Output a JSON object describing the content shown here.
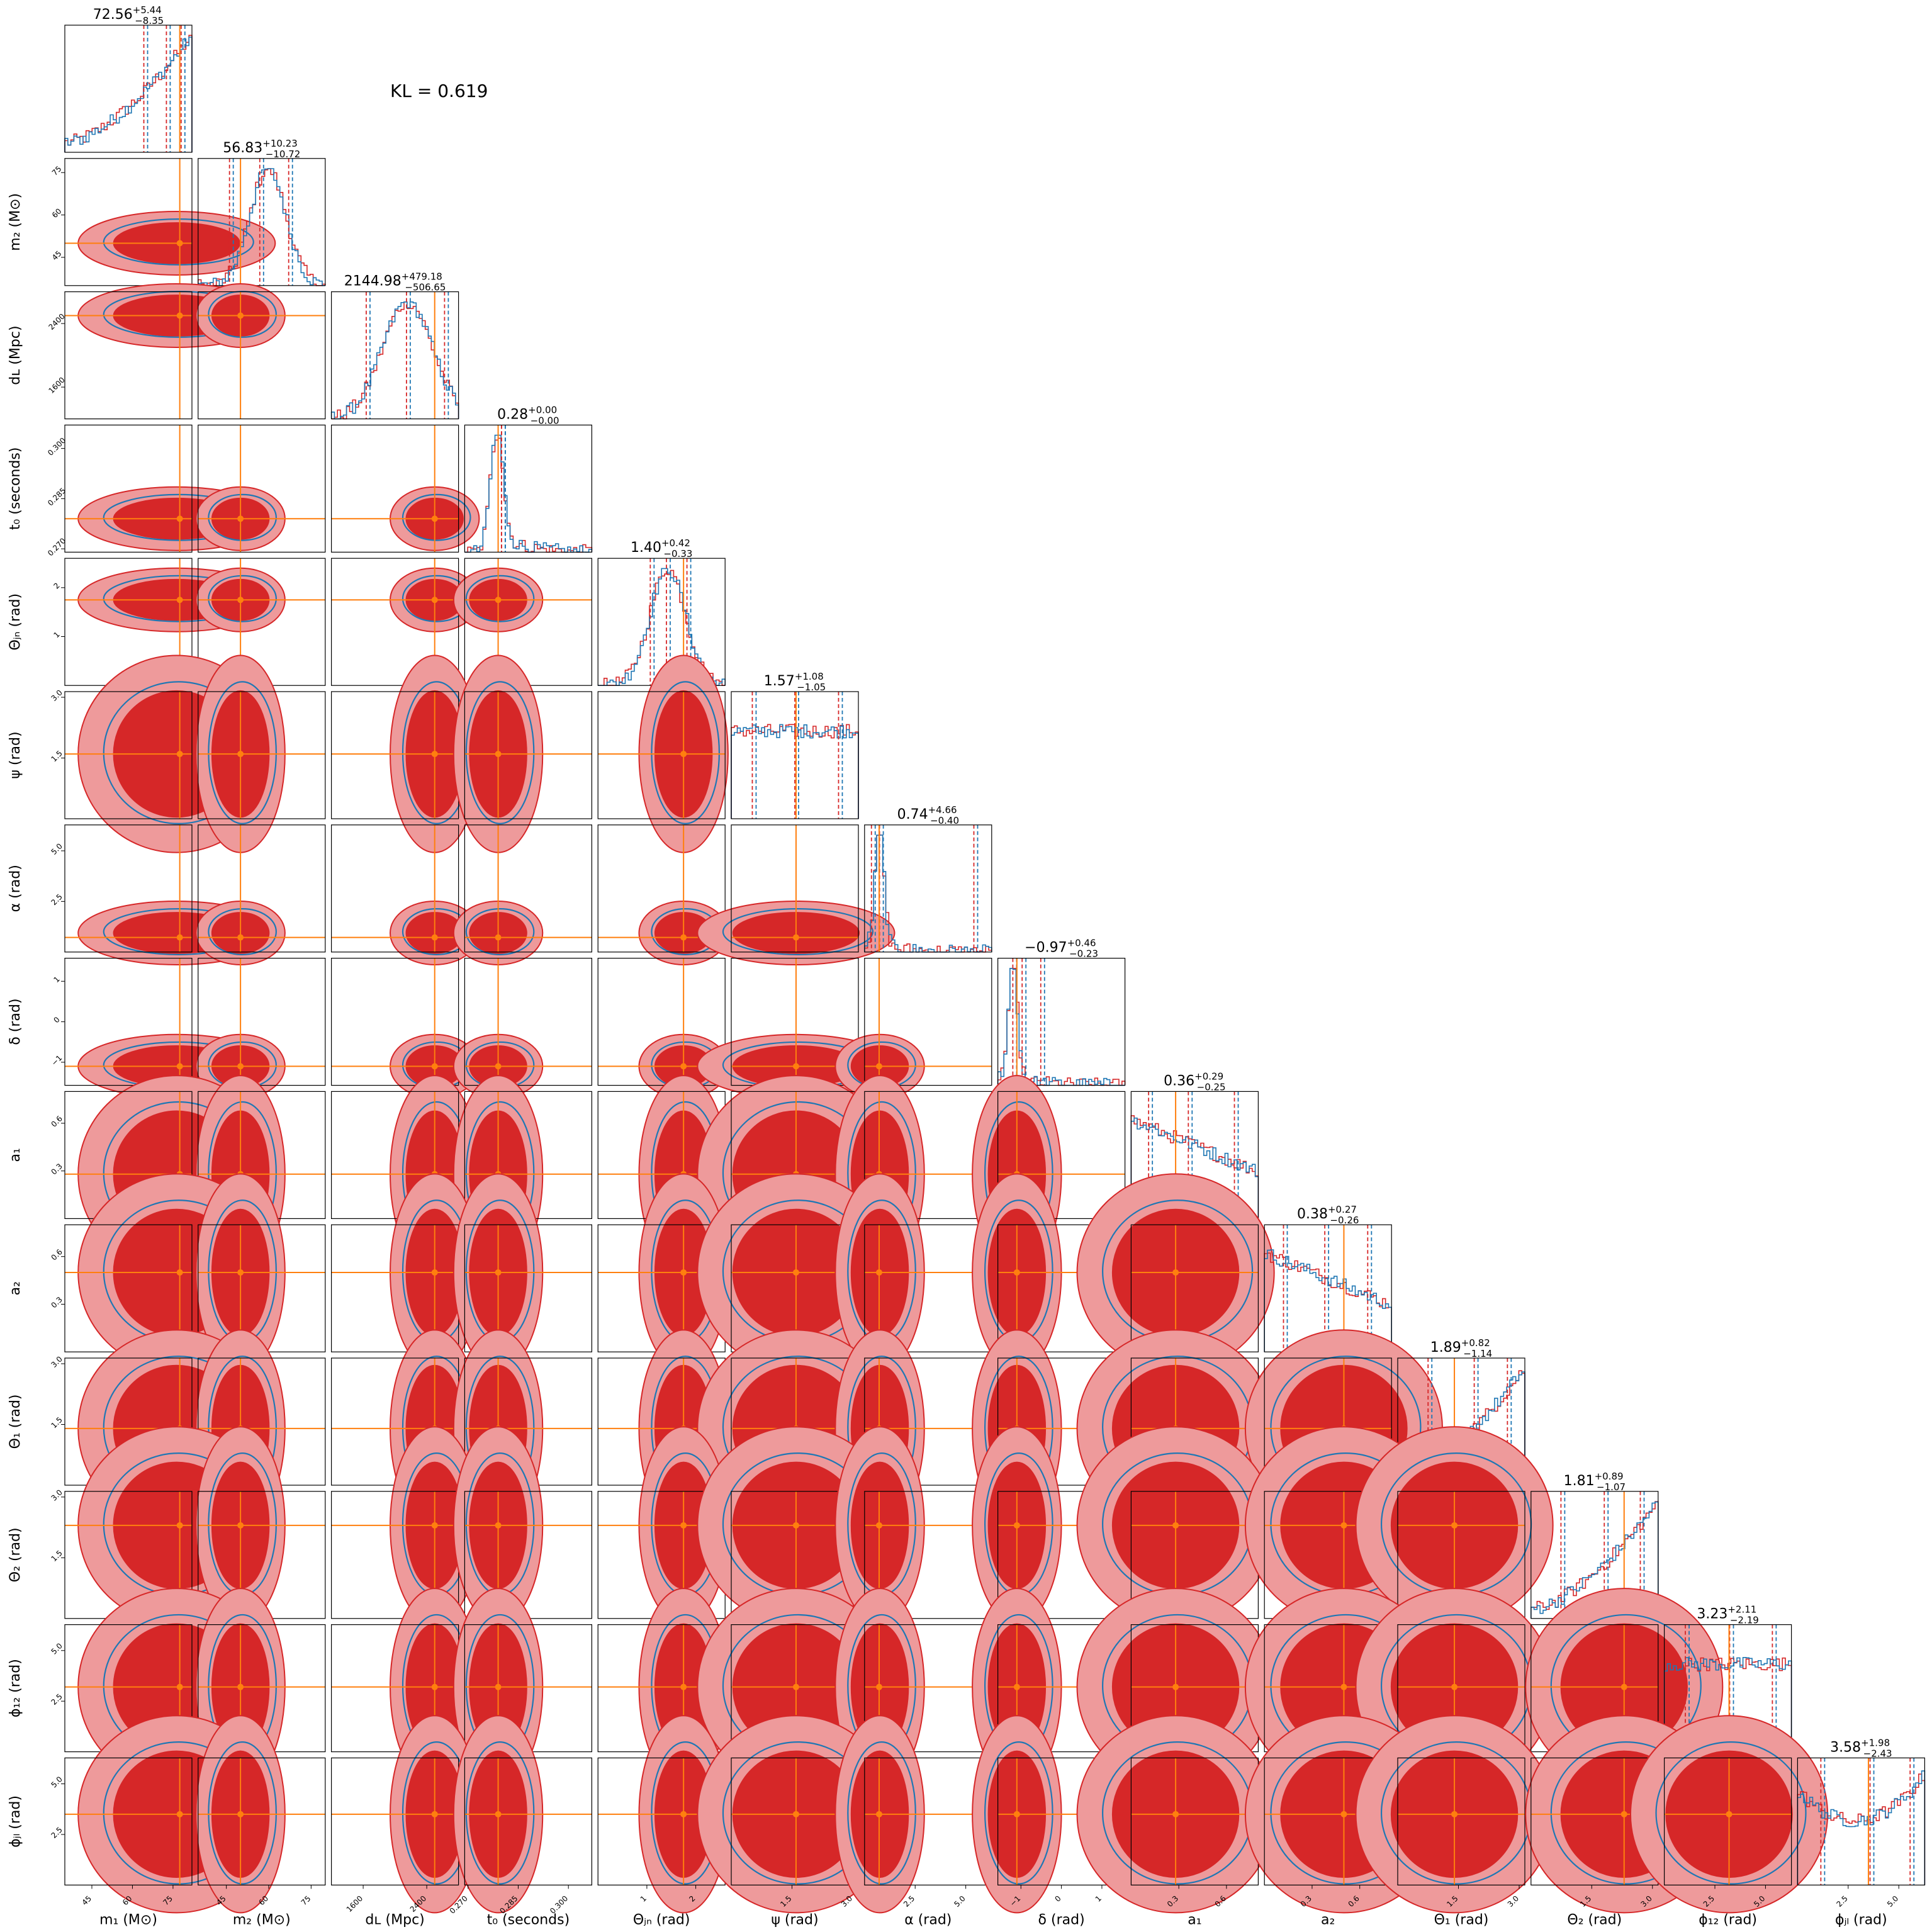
{
  "annotation": "KL = 0.619",
  "colors": {
    "series_a": "#d62728",
    "series_b": "#1f77b4",
    "truth": "#ff7f0e",
    "fill_dark": "#d62728",
    "fill_light": "#ee9a9b"
  },
  "chart_data": {
    "type": "corner",
    "series": [
      {
        "name": "",
        "color": "#d62728"
      },
      {
        "name": "",
        "color": "#1f77b4"
      }
    ],
    "parameters": [
      {
        "key": "m1",
        "label": "m₁ (M⊙)",
        "range": [
          35,
          82
        ],
        "ticks": [
          {
            "v": 45,
            "t": "45"
          },
          {
            "v": 60,
            "t": "60"
          },
          {
            "v": 75,
            "t": "75"
          }
        ],
        "truth": 77.5,
        "title": {
          "median": "72.56",
          "plus": "+5.44",
          "minus": "−8.35"
        },
        "hist_shape": "ramp_up"
      },
      {
        "key": "m2",
        "label": "m₂ (M⊙)",
        "range": [
          35,
          80
        ],
        "ticks": [
          {
            "v": 45,
            "t": "45"
          },
          {
            "v": 60,
            "t": "60"
          },
          {
            "v": 75,
            "t": "75"
          }
        ],
        "truth": 50.0,
        "title": {
          "median": "56.83",
          "plus": "+10.23",
          "minus": "−10.72"
        },
        "hist_shape": "peak_mid"
      },
      {
        "key": "dL",
        "label": "dʟ (Mpc)",
        "range": [
          1200,
          2800
        ],
        "ticks": [
          {
            "v": 1600,
            "t": "1600"
          },
          {
            "v": 2400,
            "t": "2400"
          }
        ],
        "truth": 2500,
        "title": {
          "median": "2144.98",
          "plus": "+479.18",
          "minus": "−506.65"
        },
        "hist_shape": "broad_mid"
      },
      {
        "key": "t0",
        "label": "t₀ (seconds)",
        "range": [
          0.269,
          0.307
        ],
        "ticks": [
          {
            "v": 0.27,
            "t": "0.270"
          },
          {
            "v": 0.285,
            "t": "0.285"
          },
          {
            "v": 0.3,
            "t": "0.300"
          }
        ],
        "truth": 0.279,
        "title": {
          "median": "0.28",
          "plus": "+0.00",
          "minus": "−0.00"
        },
        "hist_shape": "narrow_left"
      },
      {
        "key": "theta_jn",
        "label": "Θⱼₙ (rad)",
        "range": [
          0.0,
          2.6
        ],
        "ticks": [
          {
            "v": 1,
            "t": "1"
          },
          {
            "v": 2,
            "t": "2"
          }
        ],
        "truth": 1.75,
        "title": {
          "median": "1.40",
          "plus": "+0.42",
          "minus": "−0.33"
        },
        "hist_shape": "peak_mid"
      },
      {
        "key": "psi",
        "label": "ψ (rad)",
        "range": [
          0.0,
          3.14
        ],
        "ticks": [
          {
            "v": 1.5,
            "t": "1.5"
          },
          {
            "v": 3.0,
            "t": "3.0"
          }
        ],
        "truth": 1.6,
        "title": {
          "median": "1.57",
          "plus": "+1.08",
          "minus": "−1.05"
        },
        "hist_shape": "flat"
      },
      {
        "key": "alpha",
        "label": "α (rad)",
        "range": [
          0.0,
          6.28
        ],
        "ticks": [
          {
            "v": 2.5,
            "t": "2.5"
          },
          {
            "v": 5.0,
            "t": "5.0"
          }
        ],
        "truth": 0.72,
        "title": {
          "median": "0.74",
          "plus": "+4.66",
          "minus": "−0.40"
        },
        "hist_shape": "spike_left"
      },
      {
        "key": "delta",
        "label": "δ (rad)",
        "range": [
          -1.57,
          1.57
        ],
        "ticks": [
          {
            "v": -1,
            "t": "−1"
          },
          {
            "v": 0,
            "t": "0"
          },
          {
            "v": 1,
            "t": "1"
          }
        ],
        "truth": -1.1,
        "title": {
          "median": "−0.97",
          "plus": "+0.46",
          "minus": "−0.23"
        },
        "hist_shape": "spike_left"
      },
      {
        "key": "a1",
        "label": "a₁",
        "range": [
          0.0,
          0.8
        ],
        "ticks": [
          {
            "v": 0.3,
            "t": "0.3"
          },
          {
            "v": 0.6,
            "t": "0.6"
          }
        ],
        "truth": 0.28,
        "title": {
          "median": "0.36",
          "plus": "+0.29",
          "minus": "−0.25"
        },
        "hist_shape": "decline"
      },
      {
        "key": "a2",
        "label": "a₂",
        "range": [
          0.0,
          0.8
        ],
        "ticks": [
          {
            "v": 0.3,
            "t": "0.3"
          },
          {
            "v": 0.6,
            "t": "0.6"
          }
        ],
        "truth": 0.5,
        "title": {
          "median": "0.38",
          "plus": "+0.27",
          "minus": "−0.26"
        },
        "hist_shape": "decline"
      },
      {
        "key": "theta1",
        "label": "Θ₁ (rad)",
        "range": [
          0.0,
          3.14
        ],
        "ticks": [
          {
            "v": 1.5,
            "t": "1.5"
          },
          {
            "v": 3.0,
            "t": "3.0"
          }
        ],
        "truth": 1.4,
        "title": {
          "median": "1.89",
          "plus": "+0.82",
          "minus": "−1.14"
        },
        "hist_shape": "ramp_up"
      },
      {
        "key": "theta2",
        "label": "Θ₂ (rad)",
        "range": [
          0.0,
          3.14
        ],
        "ticks": [
          {
            "v": 1.5,
            "t": "1.5"
          },
          {
            "v": 3.0,
            "t": "3.0"
          }
        ],
        "truth": 2.3,
        "title": {
          "median": "1.81",
          "plus": "+0.89",
          "minus": "−1.07"
        },
        "hist_shape": "ramp_up"
      },
      {
        "key": "phi12",
        "label": "ϕ₁₂ (rad)",
        "range": [
          0.0,
          6.28
        ],
        "ticks": [
          {
            "v": 2.5,
            "t": "2.5"
          },
          {
            "v": 5.0,
            "t": "5.0"
          }
        ],
        "truth": 3.2,
        "title": {
          "median": "3.23",
          "plus": "+2.11",
          "minus": "−2.19"
        },
        "hist_shape": "flat"
      },
      {
        "key": "phijl",
        "label": "ϕⱼₗ (rad)",
        "range": [
          0.0,
          6.28
        ],
        "ticks": [
          {
            "v": 2.5,
            "t": "2.5"
          },
          {
            "v": 5.0,
            "t": "5.0"
          }
        ],
        "truth": 3.5,
        "title": {
          "median": "3.58",
          "plus": "+1.98",
          "minus": "−2.43"
        },
        "hist_shape": "valley"
      }
    ]
  }
}
